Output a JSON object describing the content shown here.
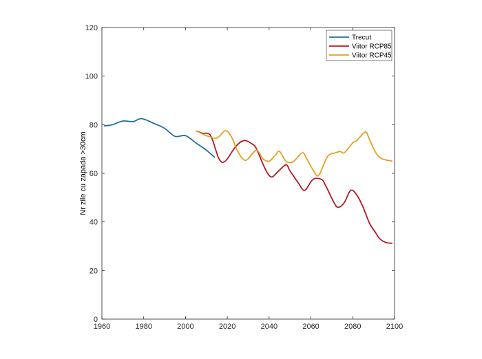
{
  "chart_data": {
    "type": "line",
    "title": "",
    "xlabel": "",
    "ylabel": "Nr zile cu zapada >30cm",
    "xlim": [
      1960,
      2100
    ],
    "ylim": [
      0,
      120
    ],
    "xticks": [
      1960,
      1980,
      2000,
      2020,
      2040,
      2060,
      2080,
      2100
    ],
    "yticks": [
      0,
      20,
      40,
      60,
      80,
      100,
      120
    ],
    "legend_position": "top-right",
    "series": [
      {
        "name": "Trecut",
        "color": "#1f6f97",
        "x": [
          1961,
          1965,
          1970,
          1975,
          1979,
          1985,
          1990,
          1995,
          2000,
          2005,
          2010,
          2014
        ],
        "y": [
          79.5,
          80,
          81.5,
          81.3,
          82.5,
          80.5,
          78.5,
          75.2,
          75.5,
          72.5,
          69.5,
          66.5
        ]
      },
      {
        "name": "Viitor RCP85",
        "color": "#b5191e",
        "x": [
          2005,
          2008,
          2012,
          2016,
          2019,
          2024,
          2028,
          2032,
          2034,
          2038,
          2041,
          2044,
          2048,
          2050,
          2054,
          2057,
          2061,
          2065,
          2067,
          2071,
          2073,
          2076,
          2079,
          2082,
          2085,
          2088,
          2091,
          2093,
          2096,
          2099
        ],
        "y": [
          77.5,
          76.5,
          75.5,
          66,
          65,
          71,
          73.5,
          72,
          70,
          62,
          58.5,
          60.5,
          63.5,
          61,
          56,
          53,
          57.5,
          57.5,
          55,
          48,
          46,
          48,
          53,
          51,
          46,
          39.5,
          35.5,
          33,
          31.5,
          31.2
        ]
      },
      {
        "name": "Viitor RCP45",
        "color": "#e3a01e",
        "x": [
          2005,
          2010,
          2015,
          2019,
          2022,
          2025,
          2028,
          2030,
          2034,
          2037,
          2040,
          2043,
          2045,
          2048,
          2051,
          2053,
          2056,
          2058,
          2062,
          2064,
          2068,
          2072,
          2074,
          2076,
          2080,
          2082,
          2086,
          2088,
          2091,
          2094,
          2099
        ],
        "y": [
          77.5,
          75.5,
          74.5,
          77.5,
          75,
          69,
          65.5,
          66,
          69.5,
          66,
          65,
          67.5,
          69,
          65,
          64.5,
          66,
          68.5,
          66,
          60,
          59.5,
          67,
          68.5,
          69,
          68.5,
          72.5,
          73.5,
          77,
          74,
          68.5,
          66,
          65
        ]
      }
    ]
  }
}
